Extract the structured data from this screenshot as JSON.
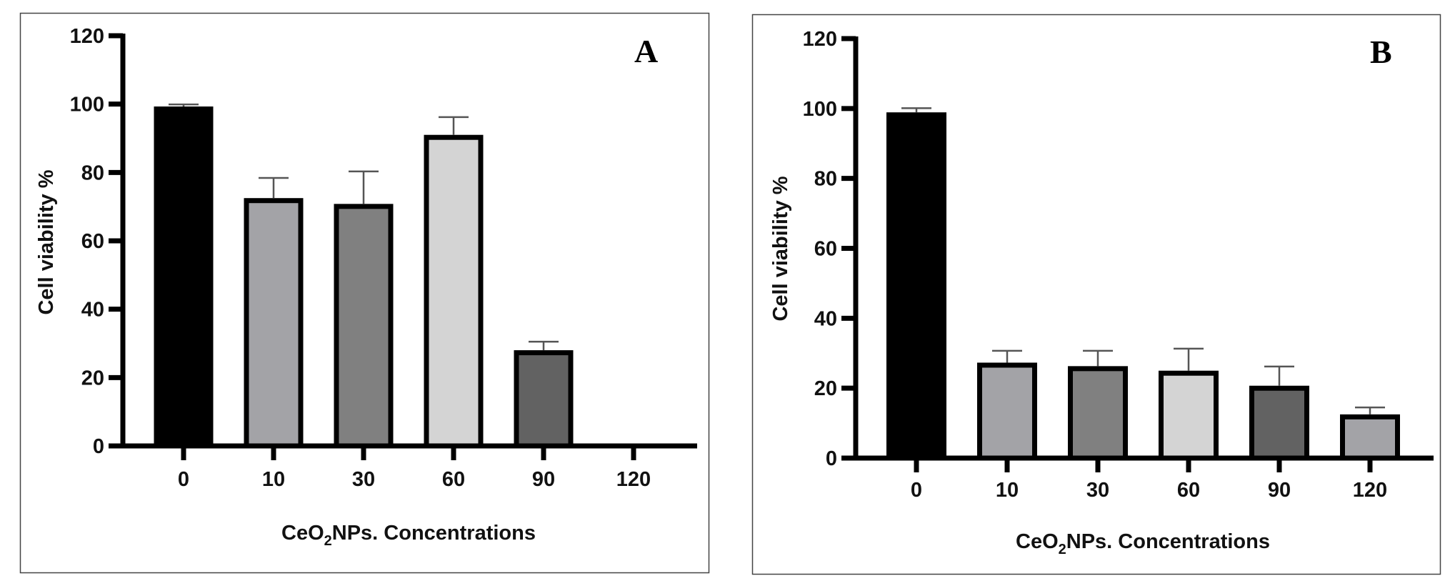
{
  "chart_data": [
    {
      "type": "bar",
      "panel_label": "A",
      "title": "",
      "xlabel": "CeO2NPs. Concentrations",
      "xlabel_parts": {
        "pre": "CeO",
        "sub": "2",
        "post": "NPs. Concentrations"
      },
      "ylabel": "Cell viability %",
      "ylim": [
        0,
        120
      ],
      "yticks": [
        0,
        20,
        40,
        60,
        80,
        100,
        120
      ],
      "categories": [
        "0",
        "10",
        "30",
        "60",
        "90",
        "120"
      ],
      "values": [
        99.3,
        72.5,
        70.8,
        91.0,
        28.0,
        null
      ],
      "error_upper": [
        99.9,
        78.4,
        80.3,
        96.2,
        30.5,
        null
      ],
      "colors": [
        "#000000",
        "#a3a3a7",
        "#808080",
        "#d4d4d4",
        "#626262",
        "#a3a3a7"
      ],
      "grid": false,
      "legend": "none"
    },
    {
      "type": "bar",
      "panel_label": "B",
      "title": "",
      "xlabel": "CeO2NPs. Concentrations",
      "xlabel_parts": {
        "pre": "CeO",
        "sub": "2",
        "post": "NPs. Concentrations"
      },
      "ylabel": "Cell viability %",
      "ylim": [
        0,
        120
      ],
      "yticks": [
        0,
        20,
        40,
        60,
        80,
        100,
        120
      ],
      "categories": [
        "0",
        "10",
        "30",
        "60",
        "90",
        "120"
      ],
      "values": [
        98.9,
        27.3,
        26.3,
        25.0,
        20.7,
        12.5
      ],
      "error_upper": [
        100.1,
        30.7,
        30.7,
        31.3,
        26.2,
        14.5
      ],
      "colors": [
        "#000000",
        "#a3a3a7",
        "#808080",
        "#d4d4d4",
        "#626262",
        "#a3a3a7"
      ],
      "grid": false,
      "legend": "none"
    }
  ]
}
